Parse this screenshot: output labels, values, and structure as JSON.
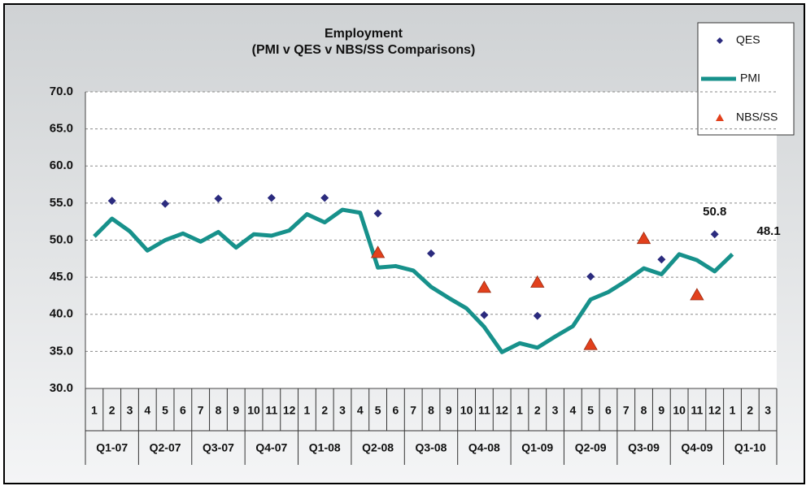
{
  "chart_data": {
    "type": "line",
    "title": "Employment",
    "subtitle": "(PMI v QES v NBS/SS Comparisons)",
    "categories": [
      "1",
      "2",
      "3",
      "4",
      "5",
      "6",
      "7",
      "8",
      "9",
      "10",
      "11",
      "12",
      "1",
      "2",
      "3",
      "4",
      "5",
      "6",
      "7",
      "8",
      "9",
      "10",
      "11",
      "12",
      "1",
      "2",
      "3",
      "4",
      "5",
      "6",
      "7",
      "8",
      "9",
      "10",
      "11",
      "12",
      "1",
      "2",
      "3"
    ],
    "quarters": [
      "Q1-07",
      "Q2-07",
      "Q3-07",
      "Q4-07",
      "Q1-08",
      "Q2-08",
      "Q3-08",
      "Q4-08",
      "Q1-09",
      "Q2-09",
      "Q3-09",
      "Q4-09",
      "Q1-10"
    ],
    "series": [
      {
        "name": "QES",
        "style": "markers",
        "marker": "diamond",
        "color": "#2b2b7e",
        "values": [
          null,
          55.3,
          null,
          null,
          54.9,
          null,
          null,
          55.6,
          null,
          null,
          55.7,
          null,
          null,
          55.7,
          null,
          null,
          53.6,
          null,
          null,
          48.2,
          null,
          null,
          39.9,
          null,
          null,
          39.8,
          null,
          null,
          45.1,
          null,
          null,
          null,
          47.4,
          null,
          null,
          50.8,
          null,
          null,
          null
        ],
        "value_labels": [
          null,
          null,
          null,
          null,
          null,
          null,
          null,
          null,
          null,
          null,
          null,
          null,
          null,
          null,
          null,
          null,
          null,
          null,
          null,
          null,
          null,
          null,
          null,
          null,
          null,
          null,
          null,
          null,
          null,
          null,
          null,
          null,
          null,
          null,
          null,
          "50.8",
          null,
          null,
          null
        ]
      },
      {
        "name": "PMI",
        "style": "line",
        "color": "#17918b",
        "values": [
          50.5,
          52.9,
          51.2,
          48.6,
          50.0,
          50.9,
          49.8,
          51.1,
          49.0,
          50.8,
          50.6,
          51.3,
          53.5,
          52.4,
          54.1,
          53.7,
          46.3,
          46.5,
          45.9,
          43.7,
          42.2,
          40.8,
          38.3,
          34.9,
          36.1,
          35.5,
          37.0,
          38.4,
          42.0,
          43.0,
          44.5,
          46.2,
          45.4,
          48.1,
          47.3,
          45.8,
          48.1,
          null,
          null
        ],
        "value_labels": [
          null,
          null,
          null,
          null,
          null,
          null,
          null,
          null,
          null,
          null,
          null,
          null,
          null,
          null,
          null,
          null,
          null,
          null,
          null,
          null,
          null,
          null,
          null,
          null,
          null,
          null,
          null,
          null,
          null,
          null,
          null,
          null,
          null,
          null,
          null,
          null,
          "48.1",
          null,
          null
        ]
      },
      {
        "name": "NBS/SS",
        "style": "markers",
        "marker": "triangle",
        "color": "#e2401c",
        "values": [
          null,
          null,
          null,
          null,
          null,
          null,
          null,
          null,
          null,
          null,
          null,
          null,
          null,
          null,
          null,
          null,
          48.3,
          null,
          null,
          null,
          null,
          null,
          43.6,
          null,
          null,
          44.3,
          null,
          null,
          35.9,
          null,
          null,
          50.2,
          null,
          null,
          42.6,
          null,
          null,
          null,
          null
        ]
      }
    ],
    "ylim": [
      30,
      70
    ],
    "yticks": [
      {
        "value": 30,
        "label": "30.0"
      },
      {
        "value": 35,
        "label": "35.0"
      },
      {
        "value": 40,
        "label": "40.0"
      },
      {
        "value": 45,
        "label": "45.0"
      },
      {
        "value": 50,
        "label": "50.0"
      },
      {
        "value": 55,
        "label": "55.0"
      },
      {
        "value": 60,
        "label": "60.0"
      },
      {
        "value": 65,
        "label": "65.0"
      },
      {
        "value": 70,
        "label": "70.0"
      }
    ],
    "grid": true,
    "legend": "top-right"
  }
}
